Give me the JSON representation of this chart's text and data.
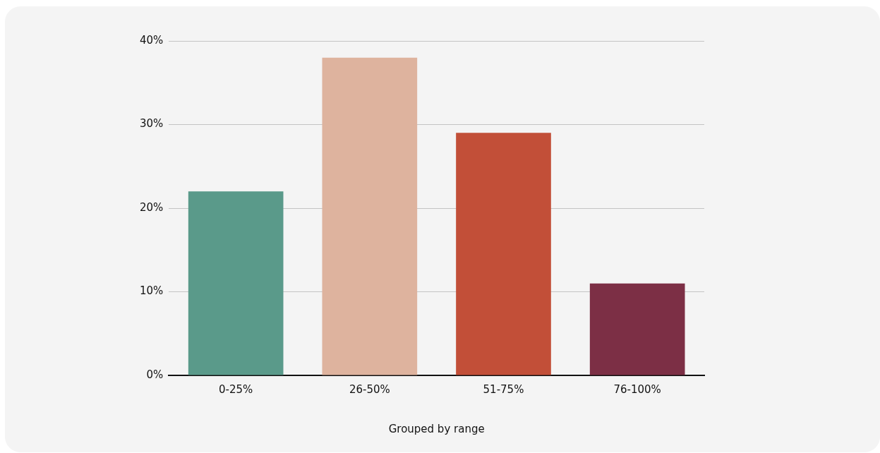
{
  "chart_data": {
    "type": "bar",
    "xlabel": "Grouped by range",
    "categories": [
      "0-25%",
      "26-50%",
      "51-75%",
      "76-100%"
    ],
    "values": [
      22,
      38,
      29,
      11
    ],
    "colors": [
      "#5a9a8a",
      "#deb39e",
      "#c24f38",
      "#7c2f45"
    ],
    "ylim": [
      0,
      40
    ],
    "yticks": [
      {
        "value": 0,
        "label": "0%"
      },
      {
        "value": 10,
        "label": "10%"
      },
      {
        "value": 20,
        "label": "20%"
      },
      {
        "value": 30,
        "label": "30%"
      },
      {
        "value": 40,
        "label": "40%"
      }
    ],
    "grid": "y"
  }
}
